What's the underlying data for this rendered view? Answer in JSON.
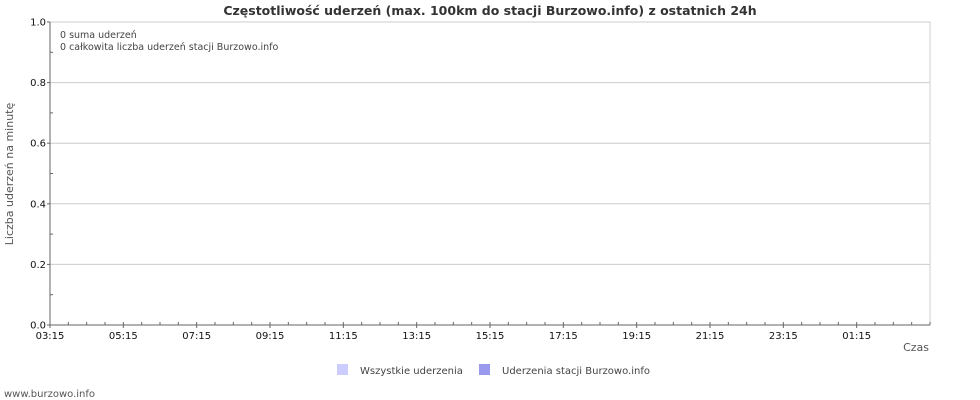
{
  "chart_data": {
    "type": "bar",
    "title": "Częstotliwość uderzeń (max. 100km do stacji Burzowo.info) z ostatnich 24h",
    "xlabel": "Czas",
    "ylabel": "Liczba uderzeń na minutę",
    "ylim": [
      0,
      1.0
    ],
    "y_ticks": [
      "0.0",
      "0.2",
      "0.4",
      "0.6",
      "0.8",
      "1.0"
    ],
    "x_ticks": [
      "03:15",
      "05:15",
      "07:15",
      "09:15",
      "11:15",
      "13:15",
      "15:15",
      "17:15",
      "19:15",
      "21:15",
      "23:15",
      "01:15"
    ],
    "grid": true,
    "legend_position": "bottom",
    "series": [
      {
        "name": "Wszystkie uderzenia",
        "color": "#ccccff",
        "values": []
      },
      {
        "name": "Uderzenia stacji Burzowo.info",
        "color": "#9999ee",
        "values": []
      }
    ],
    "annotations": [
      "0 suma uderzeń",
      "0 całkowita liczba uderzeń stacji Burzowo.info"
    ]
  },
  "footer": "www.burzowo.info"
}
